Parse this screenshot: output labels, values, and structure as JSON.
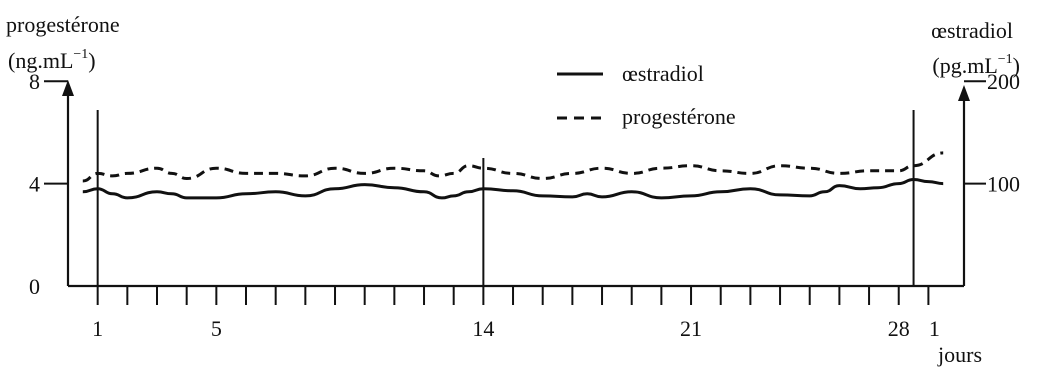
{
  "chart_data": {
    "type": "line",
    "left_axis": {
      "label_line1": "progestérone",
      "label_line2": "(ng.mL",
      "label_sup": "−1",
      "label_close": ")",
      "ylim": [
        0,
        10
      ],
      "ticks": [
        {
          "value": 0,
          "label": "0"
        },
        {
          "value": 4,
          "label": "4"
        },
        {
          "value": 8,
          "label": "8"
        }
      ]
    },
    "right_axis": {
      "label_line1": "œstradiol",
      "label_line2": "(pg.mL",
      "label_sup": "−1",
      "label_close": ")",
      "ylim": [
        0,
        250
      ],
      "ticks": [
        {
          "value": 100,
          "label": "100"
        },
        {
          "value": 200,
          "label": "200"
        }
      ]
    },
    "x_axis": {
      "label": "jours",
      "xlim": [
        0.0,
        30.2
      ],
      "tick_days": [
        1,
        2,
        3,
        4,
        5,
        6,
        7,
        8,
        9,
        10,
        11,
        12,
        13,
        14,
        15,
        16,
        17,
        18,
        19,
        20,
        21,
        22,
        23,
        24,
        25,
        26,
        27,
        28,
        29
      ],
      "tick_labels": [
        {
          "day": 1,
          "text": "1"
        },
        {
          "day": 5,
          "text": "5"
        },
        {
          "day": 14,
          "text": "14"
        },
        {
          "day": 21,
          "text": "21"
        },
        {
          "day": 28,
          "text": "28"
        },
        {
          "day": 29,
          "text": "1"
        }
      ],
      "vertical_markers": [
        1,
        14,
        28.5
      ]
    },
    "legend": {
      "position": "top-center",
      "entries": [
        {
          "name": "œstradiol",
          "style": "solid"
        },
        {
          "name": "progestérone",
          "style": "dashed"
        }
      ]
    },
    "series": [
      {
        "name": "œstradiol",
        "axis": "right",
        "style": "solid",
        "points": [
          [
            0.5,
            92
          ],
          [
            1,
            95
          ],
          [
            1.5,
            90
          ],
          [
            2,
            86
          ],
          [
            3,
            92
          ],
          [
            3.5,
            90
          ],
          [
            4,
            86
          ],
          [
            5,
            86
          ],
          [
            6,
            90
          ],
          [
            7,
            92
          ],
          [
            8,
            88
          ],
          [
            9,
            95
          ],
          [
            10,
            99
          ],
          [
            11,
            96
          ],
          [
            12,
            92
          ],
          [
            12.6,
            86
          ],
          [
            13,
            88
          ],
          [
            13.5,
            92
          ],
          [
            14,
            95
          ],
          [
            15,
            93
          ],
          [
            16,
            88
          ],
          [
            17,
            87
          ],
          [
            17.5,
            90
          ],
          [
            18,
            87
          ],
          [
            19,
            92
          ],
          [
            20,
            86
          ],
          [
            21,
            88
          ],
          [
            22,
            92
          ],
          [
            23,
            95
          ],
          [
            24,
            89
          ],
          [
            25,
            88
          ],
          [
            25.5,
            92
          ],
          [
            26,
            98
          ],
          [
            26.7,
            95
          ],
          [
            27.3,
            96
          ],
          [
            28,
            100
          ],
          [
            28.5,
            104
          ],
          [
            29,
            102
          ],
          [
            29.5,
            100
          ]
        ]
      },
      {
        "name": "progestérone",
        "axis": "left",
        "style": "dashed",
        "points": [
          [
            0.5,
            4.1
          ],
          [
            1,
            4.4
          ],
          [
            1.5,
            4.3
          ],
          [
            2,
            4.4
          ],
          [
            3,
            4.6
          ],
          [
            3.5,
            4.4
          ],
          [
            4,
            4.2
          ],
          [
            5,
            4.6
          ],
          [
            6,
            4.4
          ],
          [
            7,
            4.4
          ],
          [
            8,
            4.3
          ],
          [
            9,
            4.6
          ],
          [
            10,
            4.4
          ],
          [
            11,
            4.6
          ],
          [
            12,
            4.5
          ],
          [
            12.5,
            4.3
          ],
          [
            13,
            4.4
          ],
          [
            13.5,
            4.7
          ],
          [
            14,
            4.6
          ],
          [
            15,
            4.4
          ],
          [
            16,
            4.2
          ],
          [
            17,
            4.4
          ],
          [
            18,
            4.6
          ],
          [
            19,
            4.4
          ],
          [
            20,
            4.6
          ],
          [
            21,
            4.7
          ],
          [
            22,
            4.5
          ],
          [
            23,
            4.4
          ],
          [
            24,
            4.7
          ],
          [
            25,
            4.6
          ],
          [
            26,
            4.4
          ],
          [
            27,
            4.5
          ],
          [
            28,
            4.5
          ],
          [
            28.5,
            4.7
          ],
          [
            29.5,
            5.2
          ]
        ]
      }
    ]
  }
}
